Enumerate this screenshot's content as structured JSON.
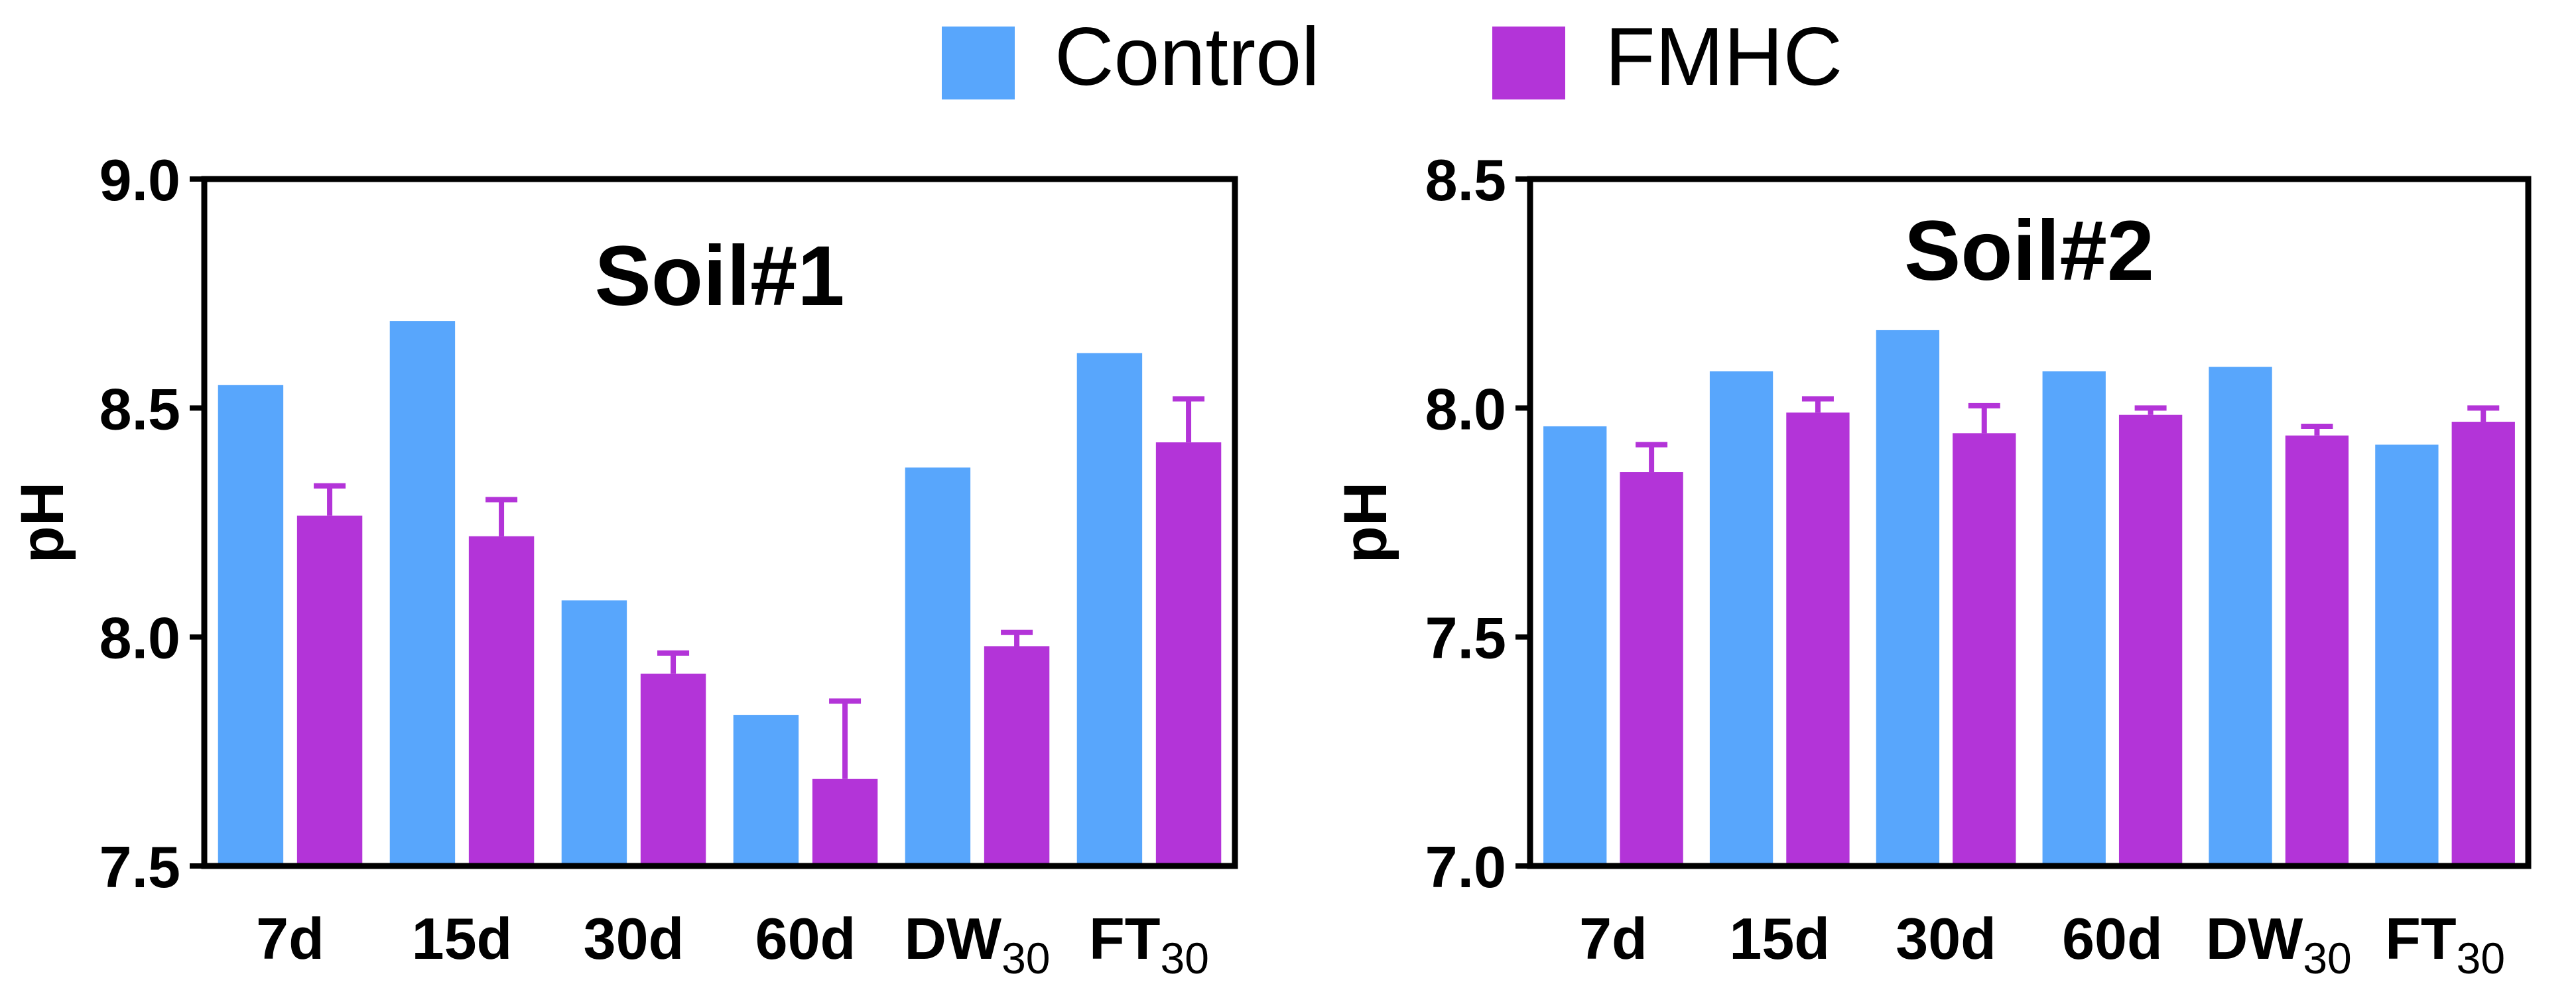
{
  "legend": {
    "items": [
      {
        "label": "Control",
        "color": "#58A6FC"
      },
      {
        "label": "FMHC",
        "color": "#B334D8"
      }
    ]
  },
  "chart_data": [
    {
      "type": "bar",
      "title": "Soil#1",
      "xlabel": "",
      "ylabel": "pH",
      "ylim": [
        7.5,
        9.0
      ],
      "yticks": [
        "7.5",
        "8.0",
        "8.5",
        "9.0"
      ],
      "categories": [
        {
          "main": "7d",
          "sub": ""
        },
        {
          "main": "15d",
          "sub": ""
        },
        {
          "main": "30d",
          "sub": ""
        },
        {
          "main": "60d",
          "sub": ""
        },
        {
          "main": "DW",
          "sub": "30"
        },
        {
          "main": "FT",
          "sub": "30"
        }
      ],
      "series": [
        {
          "name": "Control",
          "color": "#58A6FC",
          "values": [
            8.55,
            8.69,
            8.08,
            7.83,
            8.37,
            8.62
          ],
          "errors": [
            0,
            0,
            0,
            0,
            0,
            0
          ]
        },
        {
          "name": "FMHC",
          "color": "#B334D8",
          "values": [
            8.265,
            8.22,
            7.92,
            7.69,
            7.98,
            8.425
          ],
          "errors": [
            0.065,
            0.08,
            0.045,
            0.17,
            0.03,
            0.095
          ]
        }
      ]
    },
    {
      "type": "bar",
      "title": "Soil#2",
      "xlabel": "",
      "ylabel": "pH",
      "ylim": [
        7.0,
        8.5
      ],
      "yticks": [
        "7.0",
        "7.5",
        "8.0",
        "8.5"
      ],
      "categories": [
        {
          "main": "7d",
          "sub": ""
        },
        {
          "main": "15d",
          "sub": ""
        },
        {
          "main": "30d",
          "sub": ""
        },
        {
          "main": "60d",
          "sub": ""
        },
        {
          "main": "DW",
          "sub": "30"
        },
        {
          "main": "FT",
          "sub": "30"
        }
      ],
      "series": [
        {
          "name": "Control",
          "color": "#58A6FC",
          "values": [
            7.96,
            8.08,
            8.17,
            8.08,
            8.09,
            7.92
          ],
          "errors": [
            0,
            0,
            0,
            0,
            0,
            0
          ]
        },
        {
          "name": "FMHC",
          "color": "#B334D8",
          "values": [
            7.86,
            7.99,
            7.945,
            7.985,
            7.94,
            7.97
          ],
          "errors": [
            0.06,
            0.03,
            0.06,
            0.015,
            0.02,
            0.03
          ]
        }
      ]
    }
  ]
}
